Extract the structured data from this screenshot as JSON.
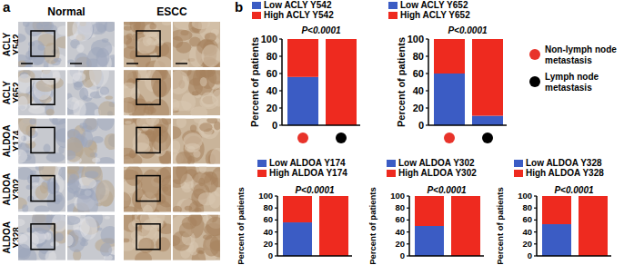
{
  "panel_a": {
    "label": "a",
    "columns": [
      "Normal",
      "ESCC"
    ],
    "rows": [
      "ACLY Y542",
      "ACLY Y652",
      "ALDOA Y174",
      "ALDOA Y302",
      "ALDOA Y328"
    ]
  },
  "panel_b_label": "b",
  "group_legend": [
    {
      "name": "Non-lymph node metastasis",
      "color": "#e8332a"
    },
    {
      "name": "Lymph node metastasis",
      "color": "#000000"
    }
  ],
  "chart_data": [
    {
      "type": "bar",
      "stacked": true,
      "annotation": "P<0.0001",
      "y_label": "Percent of patients",
      "categories": [
        null,
        null
      ],
      "ylim": [
        0,
        100
      ],
      "yticks": [
        0,
        20,
        40,
        60,
        80,
        100
      ],
      "series": [
        {
          "name": "Low ACLY Y542",
          "color": "#3b5cc4",
          "values": [
            56,
            0
          ]
        },
        {
          "name": "High ACLY Y542",
          "color": "#ee2a1f",
          "values": [
            44,
            100
          ]
        }
      ]
    },
    {
      "type": "bar",
      "stacked": true,
      "annotation": "P<0.0001",
      "y_label": "Percent of patients",
      "categories": [
        null,
        null
      ],
      "ylim": [
        0,
        100
      ],
      "yticks": [
        0,
        20,
        40,
        60,
        80,
        100
      ],
      "series": [
        {
          "name": "Low ACLY Y652",
          "color": "#3b5cc4",
          "values": [
            60,
            11
          ]
        },
        {
          "name": "High ACLY Y652",
          "color": "#ee2a1f",
          "values": [
            40,
            89
          ]
        }
      ]
    },
    {
      "type": "bar",
      "stacked": true,
      "annotation": "P<0.0001",
      "y_label": "Percent of patients",
      "categories": [
        null,
        null
      ],
      "ylim": [
        0,
        100
      ],
      "yticks": [
        0,
        20,
        40,
        60,
        80,
        100
      ],
      "series": [
        {
          "name": "Low ALDOA Y174",
          "color": "#3b5cc4",
          "values": [
            56,
            0
          ]
        },
        {
          "name": "High ALDOA Y174",
          "color": "#ee2a1f",
          "values": [
            44,
            100
          ]
        }
      ]
    },
    {
      "type": "bar",
      "stacked": true,
      "annotation": "P<0.0001",
      "y_label": "Percent of patients",
      "categories": [
        null,
        null
      ],
      "ylim": [
        0,
        100
      ],
      "yticks": [
        0,
        20,
        40,
        60,
        80,
        100
      ],
      "series": [
        {
          "name": "Low ALDOA Y302",
          "color": "#3b5cc4",
          "values": [
            50,
            0
          ]
        },
        {
          "name": "High ALDOA Y302",
          "color": "#ee2a1f",
          "values": [
            50,
            100
          ]
        }
      ]
    },
    {
      "type": "bar",
      "stacked": true,
      "annotation": "P<0.0001",
      "y_label": "Percent of patients",
      "categories": [
        null,
        null
      ],
      "ylim": [
        0,
        100
      ],
      "yticks": [
        0,
        20,
        40,
        60,
        80,
        100
      ],
      "series": [
        {
          "name": "Low ALDOA Y328",
          "color": "#3b5cc4",
          "values": [
            53,
            0
          ]
        },
        {
          "name": "High ALDOA Y328",
          "color": "#ee2a1f",
          "values": [
            47,
            100
          ]
        }
      ]
    }
  ]
}
